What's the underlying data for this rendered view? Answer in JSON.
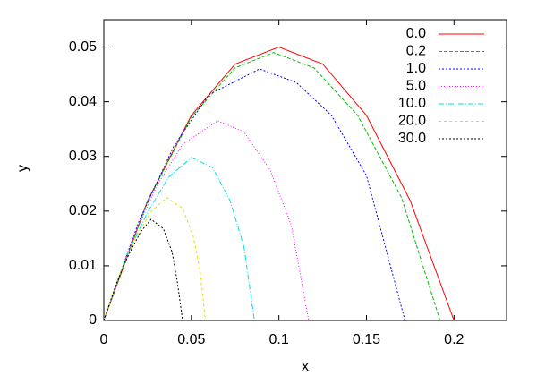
{
  "chart_data": {
    "type": "line",
    "xlabel": "x",
    "ylabel": "y",
    "xlim": [
      0,
      0.23
    ],
    "ylim": [
      0,
      0.055
    ],
    "xticks": [
      0,
      0.05,
      0.1,
      0.15,
      0.2
    ],
    "yticks": [
      0,
      0.01,
      0.02,
      0.03,
      0.04,
      0.05
    ],
    "legend": "top right",
    "series": [
      {
        "name": "0.0",
        "color": "#ff0000",
        "dash": "none",
        "x": [
          0,
          0.025,
          0.05,
          0.075,
          0.1,
          0.125,
          0.15,
          0.175,
          0.2
        ],
        "values": [
          0,
          0.0219,
          0.0375,
          0.0469,
          0.05,
          0.0469,
          0.0375,
          0.0219,
          0
        ]
      },
      {
        "name": "0.2",
        "color": "#00c000",
        "dash": "4 2",
        "x": [
          0,
          0.025,
          0.05,
          0.075,
          0.097,
          0.12,
          0.145,
          0.17,
          0.192
        ],
        "values": [
          0,
          0.0218,
          0.0372,
          0.0462,
          0.049,
          0.0462,
          0.0375,
          0.0225,
          0
        ]
      },
      {
        "name": "1.0",
        "color": "#0000ff",
        "dash": "2 2",
        "x": [
          0,
          0.02,
          0.04,
          0.06,
          0.089,
          0.11,
          0.13,
          0.15,
          0.172
        ],
        "values": [
          0,
          0.0181,
          0.0319,
          0.0413,
          0.046,
          0.0435,
          0.0375,
          0.0265,
          0
        ]
      },
      {
        "name": "5.0",
        "color": "#ff00ff",
        "dash": "1 2",
        "x": [
          0,
          0.015,
          0.03,
          0.045,
          0.065,
          0.08,
          0.095,
          0.107,
          0.117
        ],
        "values": [
          0,
          0.0138,
          0.0245,
          0.0322,
          0.0365,
          0.0345,
          0.0275,
          0.0175,
          0
        ]
      },
      {
        "name": "10.0",
        "color": "#00e0e0",
        "dash": "6 2 1 2",
        "x": [
          0,
          0.012,
          0.025,
          0.037,
          0.05,
          0.062,
          0.072,
          0.08,
          0.086
        ],
        "values": [
          0,
          0.0111,
          0.0198,
          0.0262,
          0.0298,
          0.028,
          0.022,
          0.0135,
          0
        ]
      },
      {
        "name": "20.0",
        "color": "#e0e000",
        "dash": "3 3",
        "x": [
          0,
          0.009,
          0.018,
          0.027,
          0.036,
          0.045,
          0.051,
          0.055,
          0.058
        ],
        "values": [
          0,
          0.0084,
          0.015,
          0.0199,
          0.0225,
          0.0205,
          0.0155,
          0.009,
          0
        ]
      },
      {
        "name": "30.0",
        "color": "#000000",
        "dash": "2 2",
        "x": [
          0,
          0.007,
          0.014,
          0.021,
          0.027,
          0.034,
          0.039,
          0.042,
          0.045
        ],
        "values": [
          0,
          0.0066,
          0.0119,
          0.0162,
          0.0185,
          0.0168,
          0.0125,
          0.007,
          0
        ]
      }
    ]
  }
}
